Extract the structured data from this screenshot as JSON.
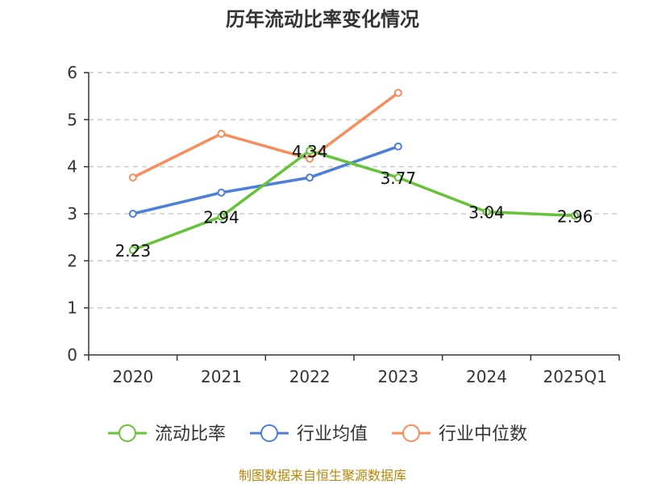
{
  "chart_data": {
    "type": "line",
    "title": "历年流动比率变化情况",
    "categories": [
      "2020",
      "2021",
      "2022",
      "2023",
      "2024",
      "2025Q1"
    ],
    "ylim": [
      0,
      6
    ],
    "yticks": [
      "0",
      "1",
      "2",
      "3",
      "4",
      "5",
      "6"
    ],
    "grid": true,
    "legend_position": "bottom",
    "series": [
      {
        "name": "流动比率",
        "color": "#67c23a",
        "values": [
          2.23,
          2.94,
          4.34,
          3.77,
          3.04,
          2.96
        ],
        "labels": [
          "2.23",
          "2.94",
          "4.34",
          "3.77",
          "3.04",
          "2.96"
        ],
        "show_labels": true
      },
      {
        "name": "行业均值",
        "color": "#4e7fd8",
        "values": [
          3.0,
          3.45,
          3.77,
          4.43,
          null,
          null
        ],
        "show_labels": false
      },
      {
        "name": "行业中位数",
        "color": "#f58d5c",
        "values": [
          3.77,
          4.7,
          4.17,
          5.57,
          null,
          null
        ],
        "show_labels": false
      }
    ],
    "source": "制图数据来自恒生聚源数据库"
  }
}
